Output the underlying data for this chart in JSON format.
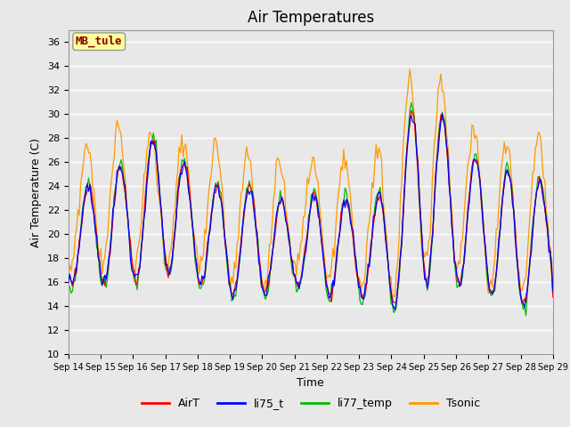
{
  "title": "Air Temperatures",
  "xlabel": "Time",
  "ylabel": "Air Temperature (C)",
  "ylim": [
    10,
    37
  ],
  "yticks": [
    10,
    12,
    14,
    16,
    18,
    20,
    22,
    24,
    26,
    28,
    30,
    32,
    34,
    36
  ],
  "xtick_labels": [
    "Sep 14",
    "Sep 15",
    "Sep 16",
    "Sep 17",
    "Sep 18",
    "Sep 19",
    "Sep 20",
    "Sep 21",
    "Sep 22",
    "Sep 23",
    "Sep 24",
    "Sep 25",
    "Sep 26",
    "Sep 27",
    "Sep 28",
    "Sep 29"
  ],
  "annotation_text": "MB_tule",
  "annotation_color": "#8b0000",
  "annotation_bg": "#ffff99",
  "colors": {
    "AirT": "#ff0000",
    "li75_t": "#0000ff",
    "li77_temp": "#00bb00",
    "Tsonic": "#ff9900"
  },
  "background_color": "#e8e8e8",
  "grid_color": "#ffffff",
  "title_fontsize": 12,
  "axis_fontsize": 9,
  "tick_fontsize": 8,
  "legend_fontsize": 9
}
